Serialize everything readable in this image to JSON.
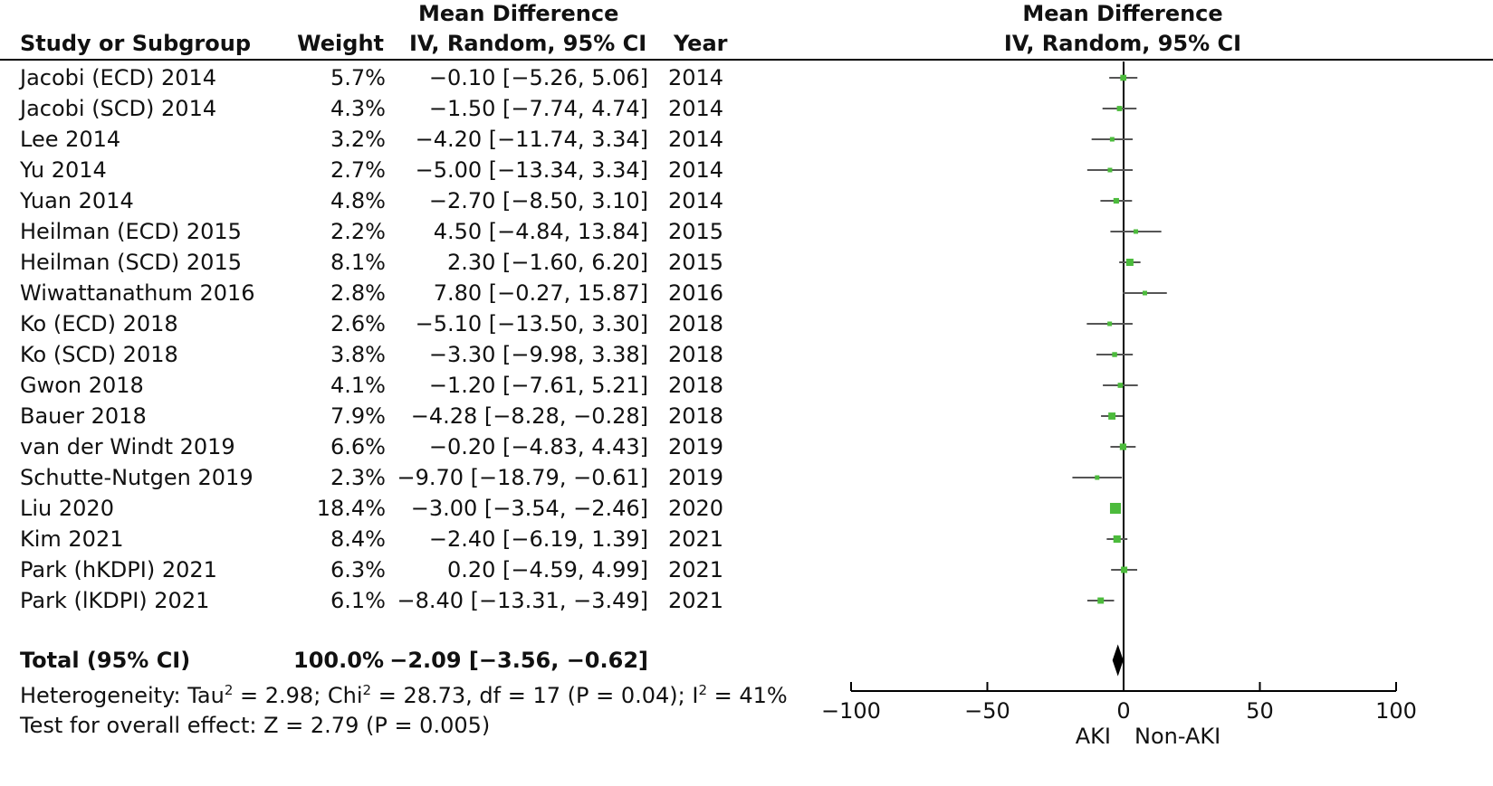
{
  "header": {
    "col_study": "Study or Subgroup",
    "col_weight": "Weight",
    "col_md_line1": "Mean Difference",
    "col_md_line2": "IV, Random, 95% CI",
    "col_year": "Year",
    "plot_line1": "Mean Difference",
    "plot_line2": "IV, Random, 95% CI"
  },
  "rows": [
    {
      "study": "Jacobi (ECD) 2014",
      "weight": "5.7%",
      "ci": "−0.10 [−5.26, 5.06]",
      "year": "2014"
    },
    {
      "study": "Jacobi (SCD) 2014",
      "weight": "4.3%",
      "ci": "−1.50 [−7.74, 4.74]",
      "year": "2014"
    },
    {
      "study": "Lee 2014",
      "weight": "3.2%",
      "ci": "−4.20 [−11.74, 3.34]",
      "year": "2014"
    },
    {
      "study": "Yu 2014",
      "weight": "2.7%",
      "ci": "−5.00 [−13.34, 3.34]",
      "year": "2014"
    },
    {
      "study": "Yuan 2014",
      "weight": "4.8%",
      "ci": "−2.70 [−8.50, 3.10]",
      "year": "2014"
    },
    {
      "study": "Heilman (ECD) 2015",
      "weight": "2.2%",
      "ci": "4.50 [−4.84, 13.84]",
      "year": "2015"
    },
    {
      "study": "Heilman (SCD) 2015",
      "weight": "8.1%",
      "ci": "2.30 [−1.60, 6.20]",
      "year": "2015"
    },
    {
      "study": "Wiwattanathum 2016",
      "weight": "2.8%",
      "ci": "7.80 [−0.27, 15.87]",
      "year": "2016"
    },
    {
      "study": "Ko (ECD) 2018",
      "weight": "2.6%",
      "ci": "−5.10 [−13.50, 3.30]",
      "year": "2018"
    },
    {
      "study": "Ko (SCD) 2018",
      "weight": "3.8%",
      "ci": "−3.30 [−9.98, 3.38]",
      "year": "2018"
    },
    {
      "study": "Gwon 2018",
      "weight": "4.1%",
      "ci": "−1.20 [−7.61, 5.21]",
      "year": "2018"
    },
    {
      "study": "Bauer 2018",
      "weight": "7.9%",
      "ci": "−4.28 [−8.28, −0.28]",
      "year": "2018"
    },
    {
      "study": "van der Windt 2019",
      "weight": "6.6%",
      "ci": "−0.20 [−4.83, 4.43]",
      "year": "2019"
    },
    {
      "study": "Schutte-Nutgen 2019",
      "weight": "2.3%",
      "ci": "−9.70 [−18.79, −0.61]",
      "year": "2019"
    },
    {
      "study": "Liu 2020",
      "weight": "18.4%",
      "ci": "−3.00 [−3.54, −2.46]",
      "year": "2020"
    },
    {
      "study": "Kim 2021",
      "weight": "8.4%",
      "ci": "−2.40 [−6.19, 1.39]",
      "year": "2021"
    },
    {
      "study": "Park (hKDPI) 2021",
      "weight": "6.3%",
      "ci": "0.20 [−4.59, 4.99]",
      "year": "2021"
    },
    {
      "study": "Park (lKDPI) 2021",
      "weight": "6.1%",
      "ci": "−8.40 [−13.31, −3.49]",
      "year": "2021"
    }
  ],
  "total": {
    "label": "Total (95% CI)",
    "weight": "100.0%",
    "ci": "−2.09 [−3.56, −0.62]"
  },
  "heterogeneity": {
    "prefix": "Heterogeneity: Tau",
    "tau_sup": "2",
    "tau_val": " = 2.98; Chi",
    "chi_sup": "2",
    "chi_val": " = 28.73, df = 17 (P = 0.04); I",
    "i_sup": "2",
    "i_val": " = 41%"
  },
  "overall_effect": "Test for overall effect: Z = 2.79 (P = 0.005)",
  "chart_data": {
    "type": "forest",
    "x_ticks": [
      -100,
      -50,
      0,
      50,
      100
    ],
    "x_tick_labels": [
      "−100",
      "−50",
      "0",
      "50",
      "100"
    ],
    "xlim": [
      -100,
      100
    ],
    "xlabel_left": "AKI",
    "xlabel_right": "Non-AKI",
    "colors": {
      "study_marker": "#4cbb3c",
      "ci_line": "#555555",
      "diamond": "#000000",
      "axis": "#000000"
    },
    "studies": [
      {
        "md": -0.1,
        "lo": -5.26,
        "hi": 5.06,
        "w": 5.7
      },
      {
        "md": -1.5,
        "lo": -7.74,
        "hi": 4.74,
        "w": 4.3
      },
      {
        "md": -4.2,
        "lo": -11.74,
        "hi": 3.34,
        "w": 3.2
      },
      {
        "md": -5.0,
        "lo": -13.34,
        "hi": 3.34,
        "w": 2.7
      },
      {
        "md": -2.7,
        "lo": -8.5,
        "hi": 3.1,
        "w": 4.8
      },
      {
        "md": 4.5,
        "lo": -4.84,
        "hi": 13.84,
        "w": 2.2
      },
      {
        "md": 2.3,
        "lo": -1.6,
        "hi": 6.2,
        "w": 8.1
      },
      {
        "md": 7.8,
        "lo": -0.27,
        "hi": 15.87,
        "w": 2.8
      },
      {
        "md": -5.1,
        "lo": -13.5,
        "hi": 3.3,
        "w": 2.6
      },
      {
        "md": -3.3,
        "lo": -9.98,
        "hi": 3.38,
        "w": 3.8
      },
      {
        "md": -1.2,
        "lo": -7.61,
        "hi": 5.21,
        "w": 4.1
      },
      {
        "md": -4.28,
        "lo": -8.28,
        "hi": -0.28,
        "w": 7.9
      },
      {
        "md": -0.2,
        "lo": -4.83,
        "hi": 4.43,
        "w": 6.6
      },
      {
        "md": -9.7,
        "lo": -18.79,
        "hi": -0.61,
        "w": 2.3
      },
      {
        "md": -3.0,
        "lo": -3.54,
        "hi": -2.46,
        "w": 18.4
      },
      {
        "md": -2.4,
        "lo": -6.19,
        "hi": 1.39,
        "w": 8.4
      },
      {
        "md": 0.2,
        "lo": -4.59,
        "hi": 4.99,
        "w": 6.3
      },
      {
        "md": -8.4,
        "lo": -13.31,
        "hi": -3.49,
        "w": 6.1
      }
    ],
    "total": {
      "md": -2.09,
      "lo": -3.56,
      "hi": -0.62
    }
  }
}
